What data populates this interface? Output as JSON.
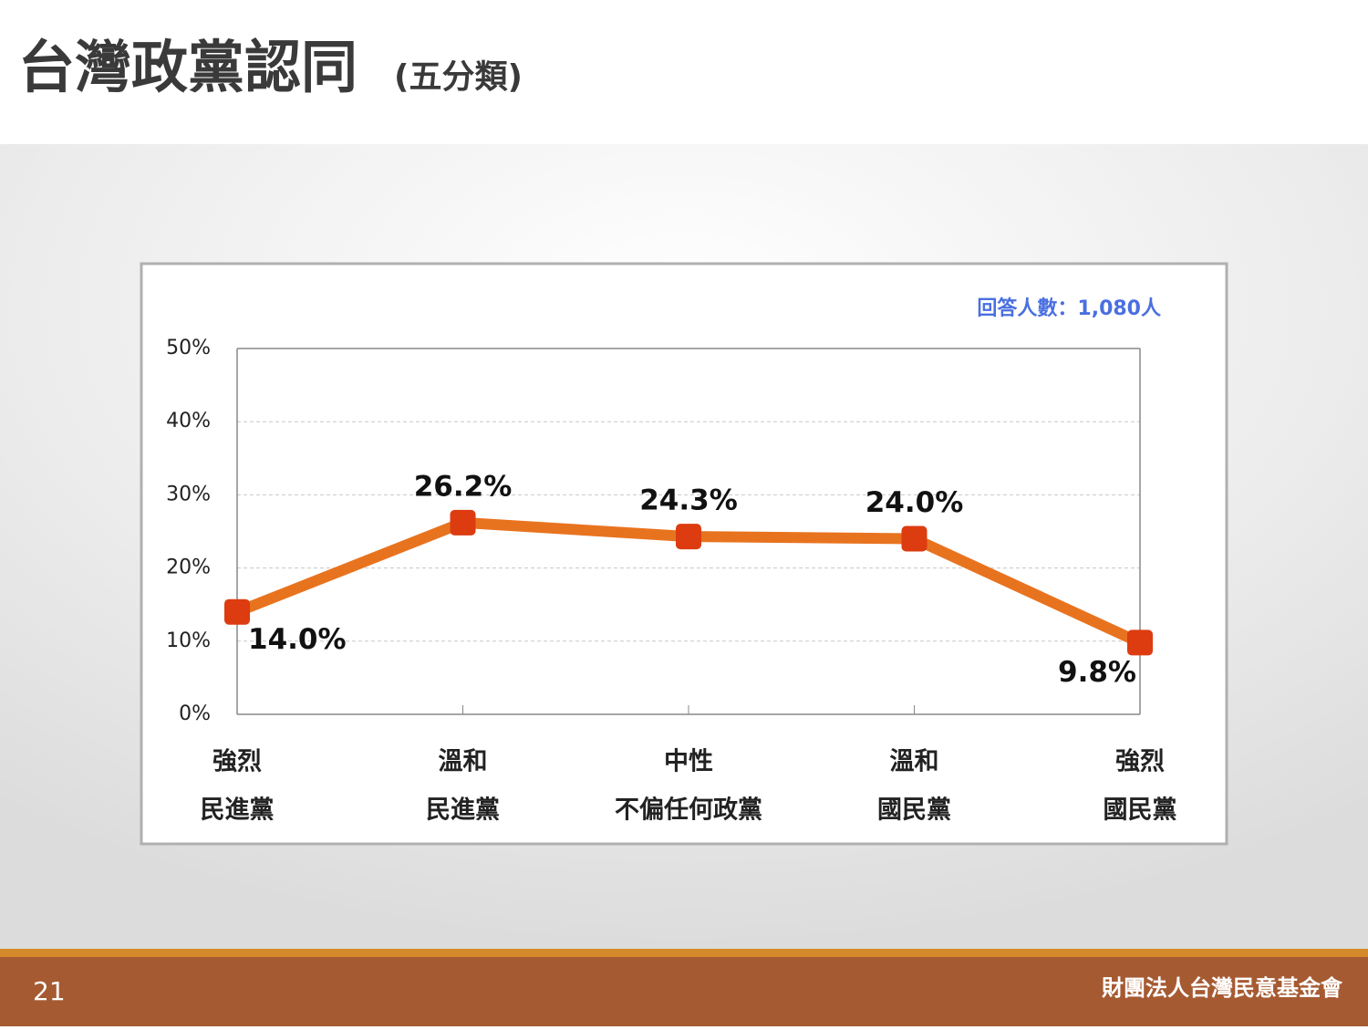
{
  "header": {
    "title": "台灣政黨認同",
    "subtitle": "(五分類)"
  },
  "chart_data": {
    "type": "line",
    "annotation": "回答人數：1,080人",
    "categories": [
      [
        "強烈",
        "民進黨"
      ],
      [
        "溫和",
        "民進黨"
      ],
      [
        "中性",
        "不偏任何政黨"
      ],
      [
        "溫和",
        "國民黨"
      ],
      [
        "強烈",
        "國民黨"
      ]
    ],
    "values": [
      14.0,
      26.2,
      24.3,
      24.0,
      9.8
    ],
    "value_labels": [
      "14.0%",
      "26.2%",
      "24.3%",
      "24.0%",
      "9.8%"
    ],
    "color": "#e8731f",
    "marker_color": "#dc3c10",
    "ylim": [
      0,
      50
    ],
    "yticks": [
      {
        "value": 0,
        "label": "0%"
      },
      {
        "value": 10,
        "label": "10%"
      },
      {
        "value": 20,
        "label": "20%"
      },
      {
        "value": 30,
        "label": "30%"
      },
      {
        "value": 40,
        "label": "40%"
      },
      {
        "value": 50,
        "label": "50%"
      }
    ],
    "grid": true
  },
  "footer": {
    "page": "21",
    "organization": "財團法人台灣民意基金會"
  }
}
